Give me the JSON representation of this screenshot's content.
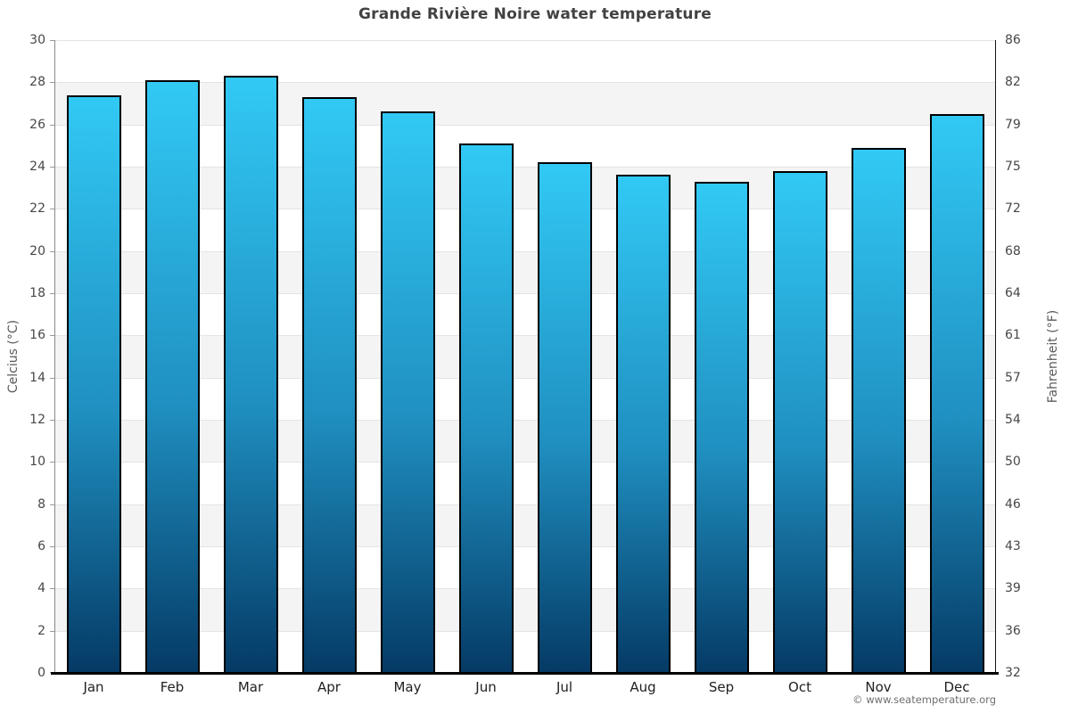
{
  "title": "Grande Rivière Noire water temperature",
  "attribution": "© www.seatemperature.org",
  "chart_data": {
    "type": "bar",
    "title": "Grande Rivière Noire water temperature",
    "categories": [
      "Jan",
      "Feb",
      "Mar",
      "Apr",
      "May",
      "Jun",
      "Jul",
      "Aug",
      "Sep",
      "Oct",
      "Nov",
      "Dec"
    ],
    "values_celsius": [
      27.4,
      28.1,
      28.3,
      27.3,
      26.6,
      25.1,
      24.2,
      23.6,
      23.3,
      23.8,
      24.9,
      26.5
    ],
    "xlabel": "",
    "ylabel_left": "Celcius (°C)",
    "ylabel_right": "Fahrenheit (°F)",
    "ylim": [
      0,
      30
    ],
    "yticks_celsius": [
      30,
      28,
      26,
      24,
      22,
      20,
      18,
      16,
      14,
      12,
      10,
      8,
      6,
      4,
      2,
      0
    ],
    "yticks_fahrenheit": [
      86,
      82,
      79,
      75,
      72,
      68,
      64,
      61,
      57,
      54,
      50,
      46,
      43,
      39,
      36,
      32
    ],
    "grid": "horizontal-alternating-bands",
    "legend": "none",
    "colors": {
      "bar_top": "#32c9f5",
      "bar_bottom": "#053a65",
      "bar_outline": "#000000",
      "band": "#f4f4f4",
      "gridline": "#e4e4e4",
      "axis_bottom": "#000000"
    }
  }
}
